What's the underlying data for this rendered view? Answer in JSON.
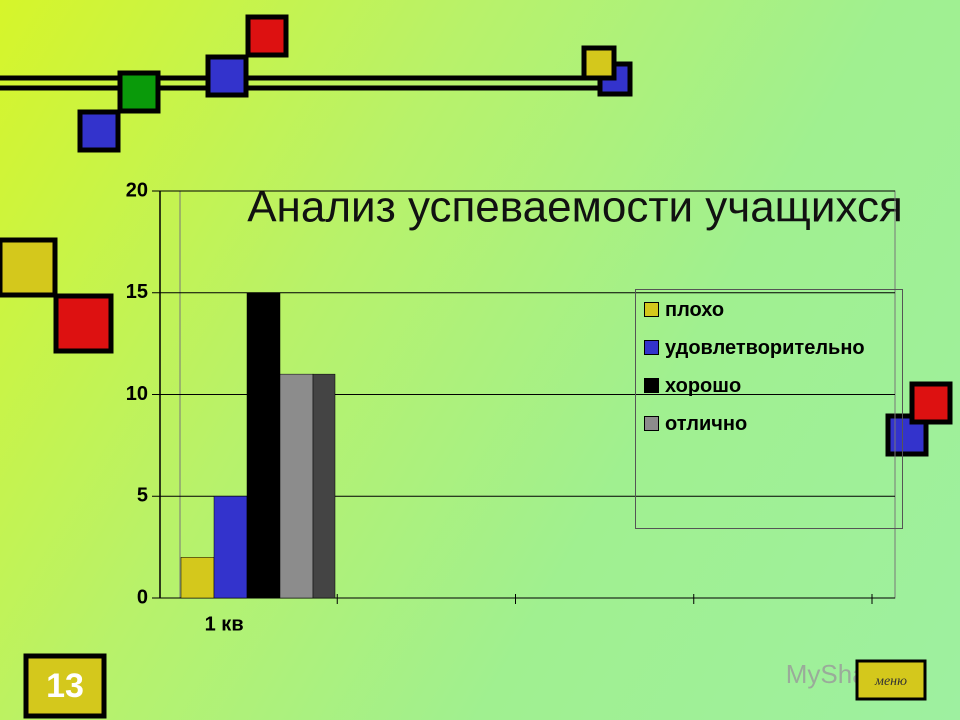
{
  "slide_number": "13",
  "menu": "меню",
  "watermark": "MyShared",
  "chart_data": {
    "type": "bar",
    "title": "Анализ успеваемости учащихся",
    "categories": [
      "1 кв",
      null,
      null,
      null
    ],
    "series": [
      {
        "name": "плохо",
        "color": "#d4c81c",
        "values": [
          2,
          null,
          null,
          null
        ]
      },
      {
        "name": "удовлетворительно",
        "color": "#3333cc",
        "values": [
          5,
          null,
          null,
          null
        ]
      },
      {
        "name": "хорошо",
        "color": "#000000",
        "values": [
          15,
          null,
          null,
          null
        ]
      },
      {
        "name": "отлично",
        "color": "#8c8c8c",
        "values": [
          11,
          null,
          null,
          null
        ]
      }
    ],
    "ylim": [
      0,
      20
    ],
    "yticks": [
      0,
      5,
      10,
      15,
      20
    ],
    "grid": true,
    "legend": "right"
  }
}
